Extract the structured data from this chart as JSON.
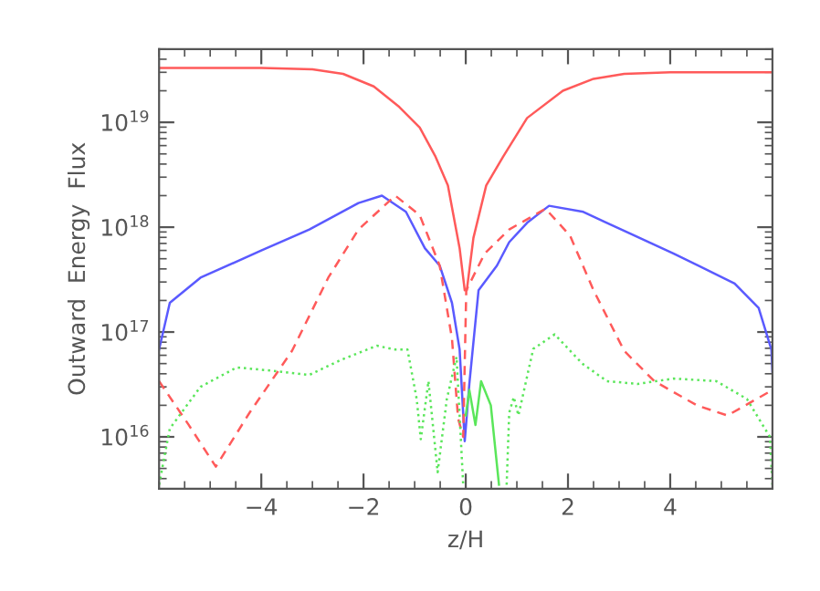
{
  "chart_data": {
    "type": "line",
    "xlabel": "z/H",
    "ylabel": "Outward  Energy  Flux",
    "log": "y",
    "xlim": [
      -6,
      6
    ],
    "ylim": [
      3200000000000000.0,
      5e+19
    ],
    "xticks": [
      {
        "value": -4,
        "label": "−4"
      },
      {
        "value": -2,
        "label": "−2"
      },
      0,
      2,
      4
    ],
    "yticks": [
      {
        "value": 1e+16,
        "label": "10$^{16}$"
      },
      {
        "value": 1e+17,
        "label": "10$^{17}$"
      },
      {
        "value": 1e+18,
        "label": "10$^{18}$"
      },
      {
        "value": 1e+19,
        "label": "10$^{19}$"
      }
    ],
    "grid": false,
    "legend": false,
    "series": [
      {
        "color": "#ff5a5a",
        "line_style": "solid",
        "x": [
          -6,
          -4,
          -3,
          -2.4,
          -1.8,
          -1.3,
          -0.9,
          -0.6,
          -0.35,
          -0.12,
          -0.02,
          0.02,
          0.15,
          0.4,
          0.73,
          1.2,
          1.9,
          2.5,
          3.1,
          4,
          6
        ],
        "values": [
          3.3e+19,
          3.3e+19,
          3.2e+19,
          2.9e+19,
          2.2e+19,
          1.4e+19,
          8.9e+18,
          4.8e+18,
          2.5e+18,
          6.3e+17,
          2.5e+17,
          2.5e+17,
          7.9e+17,
          2.5e+18,
          4.7e+18,
          1.1e+19,
          2e+19,
          2.6e+19,
          2.9e+19,
          3e+19,
          3e+19
        ]
      },
      {
        "color": "#5a5aff",
        "line_style": "solid",
        "x": [
          -6,
          -5.79,
          -5.19,
          -4.0,
          -3.06,
          -2.1,
          -1.64,
          -1.17,
          -0.8,
          -0.51,
          -0.27,
          -0.12,
          -0.02,
          0.07,
          0.25,
          0.61,
          0.85,
          1.2,
          1.63,
          2.3,
          2.76,
          4.07,
          5.26,
          5.73,
          5.98,
          6.0
        ],
        "values": [
          6.8e+16,
          1.9e+17,
          3.3e+17,
          6e+17,
          9.5e+17,
          1.7e+18,
          2e+18,
          1.4e+18,
          6.3e+17,
          4.3e+17,
          1.9e+17,
          6.8e+16,
          9100000000000000.0,
          3.2e+16,
          2.5e+17,
          4.3e+17,
          7.2e+17,
          1.1e+18,
          1.6e+18,
          1.4e+18,
          1.1e+18,
          5.6e+17,
          2.9e+17,
          1.7e+17,
          6.8e+16,
          4.2e+16
        ]
      },
      {
        "color": "#ff5a5a",
        "line_style": "dashed",
        "x": [
          -6,
          -5.42,
          -4.89,
          -4.23,
          -3.4,
          -2.69,
          -2.1,
          -1.38,
          -0.9,
          -0.51,
          -0.27,
          -0.15,
          -0.05,
          0.01,
          0.37,
          0.85,
          1.56,
          2.04,
          2.5,
          3.1,
          3.69,
          4.52,
          5.12,
          6.0
        ],
        "values": [
          3.4e+16,
          1.3e+16,
          5200000000000000.0,
          1.7e+16,
          6.6e+16,
          3.3e+17,
          9.5e+17,
          2e+18,
          1.3e+18,
          4.3e+17,
          8.7e+16,
          1.5e+16,
          1e+16,
          2.5e+17,
          5.6e+17,
          9.5e+17,
          1.5e+18,
          8.3e+17,
          2.5e+17,
          6.6e+16,
          3.4e+16,
          2e+16,
          1.6e+16,
          2.8e+16
        ]
      },
      {
        "color": "#5ae65a",
        "line_style": "dotted",
        "x": [
          -6,
          -5.79,
          -5.19,
          -4.48,
          -3.64,
          -3.06,
          -2.45,
          -1.74,
          -1.38,
          -1.14,
          -0.96,
          -0.88,
          -0.73,
          -0.55,
          -0.37,
          -0.18,
          -0.05,
          0.3,
          0.8,
          0.85,
          0.94,
          1.03,
          1.32,
          1.74,
          2.28,
          2.76,
          3.36,
          4.07,
          4.9,
          5.5,
          5.95,
          6.0
        ],
        "values": [
          3500000000000000.0,
          1.2e+16,
          3e+16,
          4.6e+16,
          4.2e+16,
          3.9e+16,
          5.4e+16,
          7.4e+16,
          6.8e+16,
          6.8e+16,
          2.3e+16,
          9500000000000000.0,
          3.4e+16,
          4600000000000000.0,
          2.3e+16,
          5.8e+16,
          3500000000000000.0,
          null,
          3500000000000000.0,
          1.7e+16,
          2.4e+16,
          1.6e+16,
          6.9e+16,
          9.5e+16,
          5e+16,
          3.4e+16,
          3.2e+16,
          3.6e+16,
          3.4e+16,
          2.3e+16,
          1e+16,
          3500000000000000.0
        ]
      },
      {
        "color": "#5ae65a",
        "line_style": "solid",
        "x": [
          0.0,
          0.07,
          0.19,
          0.3,
          0.49,
          0.65
        ],
        "values": [
          1.6e+16,
          2.8e+16,
          1.3e+16,
          3.4e+16,
          2e+16,
          3500000000000000.0
        ]
      }
    ]
  }
}
